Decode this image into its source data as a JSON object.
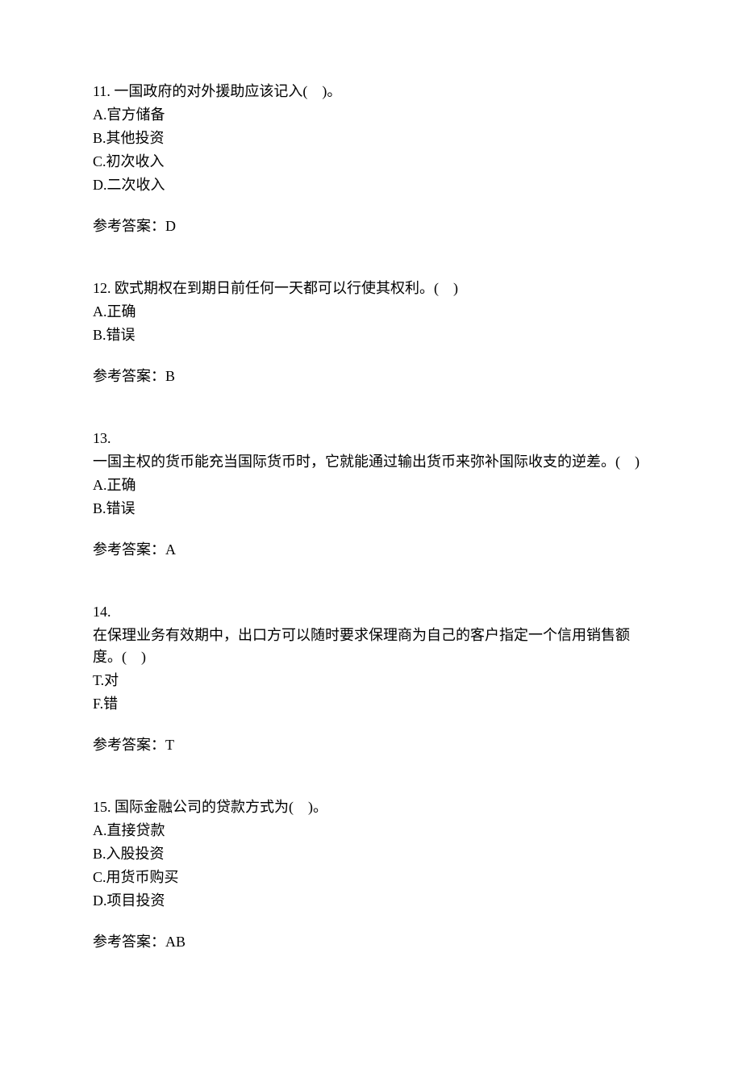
{
  "questions": [
    {
      "number": "11.",
      "text": "一国政府的对外援助应该记入(　)。",
      "options": [
        "A.官方储备",
        "B.其他投资",
        "C.初次收入",
        "D.二次收入"
      ],
      "answer_label": "参考答案：",
      "answer_value": "D"
    },
    {
      "number": "12.",
      "text": "欧式期权在到期日前任何一天都可以行使其权利。(　)",
      "options": [
        "A.正确",
        "B.错误"
      ],
      "answer_label": "参考答案：",
      "answer_value": "B"
    },
    {
      "number": "13.",
      "text": "一国主权的货币能充当国际货币时，它就能通过输出货币来弥补国际收支的逆差。(　)",
      "options": [
        "A.正确",
        "B.错误"
      ],
      "answer_label": "参考答案：",
      "answer_value": "A"
    },
    {
      "number": "14.",
      "text": "在保理业务有效期中，出口方可以随时要求保理商为自己的客户指定一个信用销售额度。(　)",
      "options": [
        "T.对",
        "F.错"
      ],
      "answer_label": "参考答案：",
      "answer_value": "T"
    },
    {
      "number": "15.",
      "text": "国际金融公司的贷款方式为(　)。",
      "options": [
        "A.直接贷款",
        "B.入股投资",
        "C.用货币购买",
        "D.项目投资"
      ],
      "answer_label": "参考答案：",
      "answer_value": "AB"
    }
  ]
}
